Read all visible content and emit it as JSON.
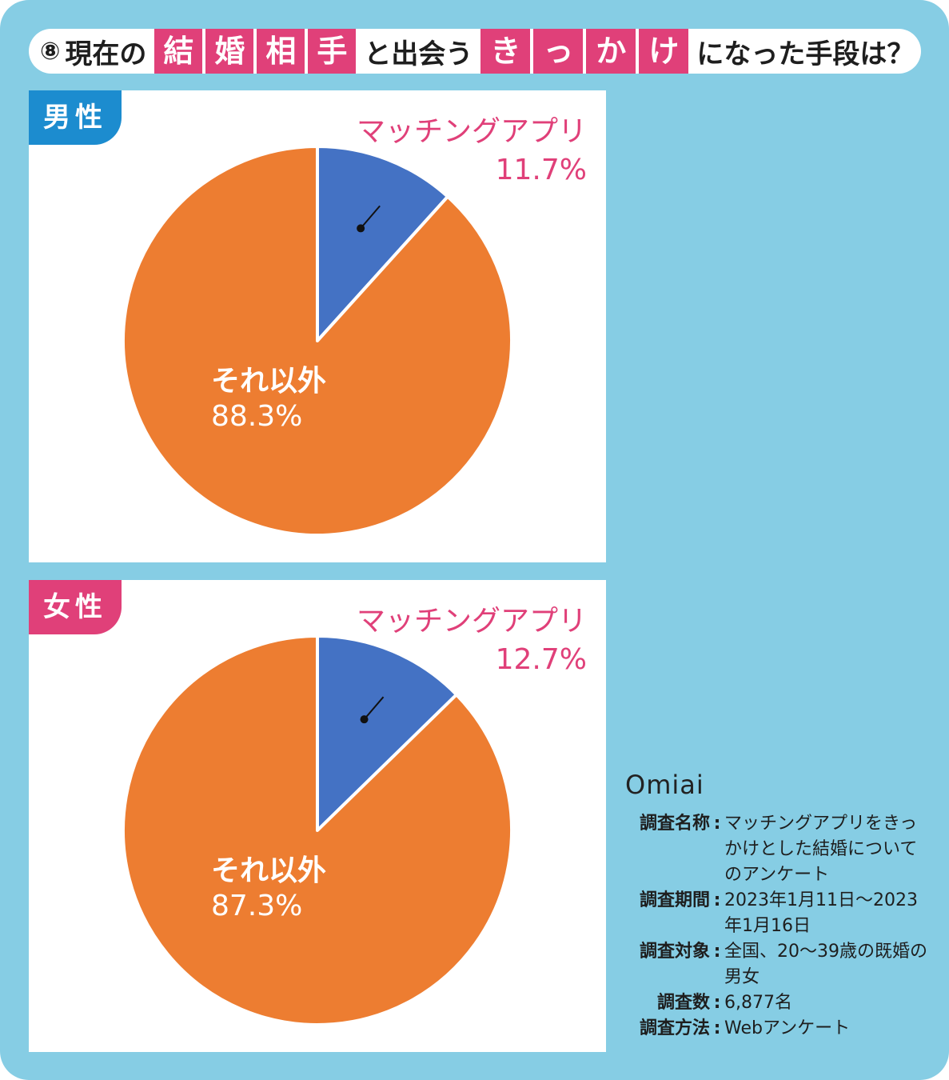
{
  "title": {
    "number": "⑧",
    "text_before": "現在の",
    "boxes_1": [
      "結",
      "婚",
      "相",
      "手"
    ],
    "text_mid": "と出会う",
    "boxes_2": [
      "き",
      "っ",
      "か",
      "け"
    ],
    "text_after": "になった手段は？"
  },
  "colors": {
    "background": "#86cde4",
    "app_slice": "#4472c4",
    "other_slice": "#ed7d31",
    "accent_pink": "#e04079",
    "male_tab": "#1c8ccf"
  },
  "chart_data": [
    {
      "type": "pie",
      "group": "男性",
      "slices": [
        {
          "label": "マッチングアプリ",
          "value": 11.7,
          "display": "11.7%",
          "color": "#4472c4"
        },
        {
          "label": "それ以外",
          "value": 88.3,
          "display": "88.3%",
          "color": "#ed7d31"
        }
      ]
    },
    {
      "type": "pie",
      "group": "女性",
      "slices": [
        {
          "label": "マッチングアプリ",
          "value": 12.7,
          "display": "12.7%",
          "color": "#4472c4"
        },
        {
          "label": "それ以外",
          "value": 87.3,
          "display": "87.3%",
          "color": "#ed7d31"
        }
      ]
    }
  ],
  "survey": {
    "logo": "Omiai",
    "rows": [
      {
        "key": "調査名称",
        "value": "マッチングアプリをきっかけとした結婚についてのアンケート"
      },
      {
        "key": "調査期間",
        "value": "2023年1月11日〜2023年1月16日"
      },
      {
        "key": "調査対象",
        "value": "全国、20〜39歳の既婚の男女"
      },
      {
        "key": "調査数",
        "value": "6,877名"
      },
      {
        "key": "調査方法",
        "value": "Webアンケート"
      }
    ]
  }
}
